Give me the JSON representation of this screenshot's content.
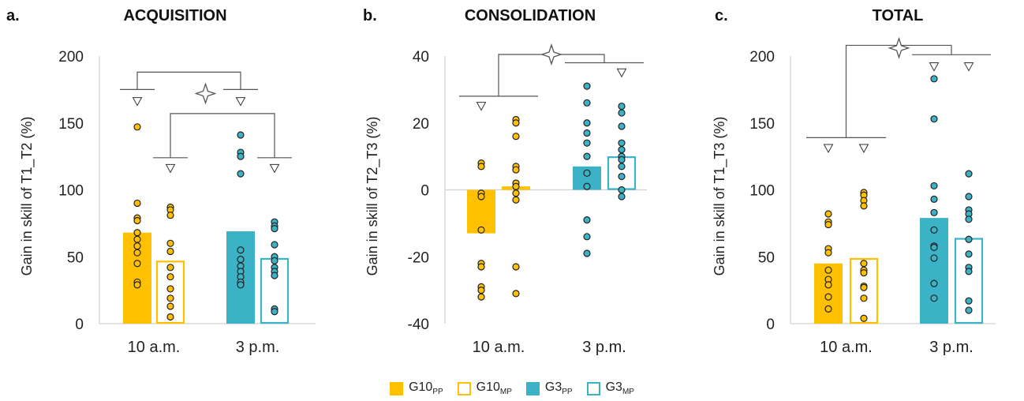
{
  "colors": {
    "g10": "#ffc000",
    "g3": "#3cb2c6",
    "star": "#555555",
    "axis": "#d0d0d0",
    "bracket": "#555555"
  },
  "legend": [
    {
      "base": "G10",
      "sub": "PP",
      "fill": "filled",
      "color": "#ffc000"
    },
    {
      "base": "G10",
      "sub": "MP",
      "fill": "hollow",
      "color": "#ffc000"
    },
    {
      "base": "G3",
      "sub": "PP",
      "fill": "filled",
      "color": "#3cb2c6"
    },
    {
      "base": "G3",
      "sub": "MP",
      "fill": "hollow",
      "color": "#3cb2c6"
    }
  ],
  "chart_data": [
    {
      "letter": "a.",
      "title": "ACQUISITION",
      "type": "bar",
      "ylabel": "Gain in skill of T1_T2 (%)",
      "ylim": [
        0,
        200
      ],
      "yticks": [
        0,
        50,
        100,
        150,
        200
      ],
      "categories": [
        "10 a.m.",
        "3 p.m."
      ],
      "series": [
        {
          "group": "G10",
          "cond": "PP",
          "category": "10 a.m.",
          "mean": 68,
          "points": [
            147,
            90,
            79,
            77,
            68,
            63,
            58,
            53,
            45,
            31,
            29
          ]
        },
        {
          "group": "G10",
          "cond": "MP",
          "category": "10 a.m.",
          "mean": 47,
          "points": [
            87,
            85,
            81,
            60,
            54,
            42,
            35,
            26,
            19,
            13,
            5
          ]
        },
        {
          "group": "G3",
          "cond": "PP",
          "category": "3 p.m.",
          "mean": 69,
          "points": [
            141,
            128,
            125,
            112,
            55,
            48,
            43,
            39,
            35,
            31,
            29
          ]
        },
        {
          "group": "G3",
          "cond": "MP",
          "category": "3 p.m.",
          "mean": 49,
          "points": [
            76,
            73,
            71,
            59,
            50,
            47,
            42,
            39,
            36,
            11,
            9
          ]
        }
      ],
      "markers": [
        {
          "series": 0,
          "y": 166
        },
        {
          "series": 1,
          "y": 116
        },
        {
          "series": 2,
          "y": 166
        },
        {
          "series": 3,
          "y": 116
        }
      ],
      "brackets": [
        {
          "from": 0,
          "to": 2,
          "level": 175,
          "top": 188,
          "dir": "up"
        },
        {
          "from": 1,
          "to": 3,
          "level": 124,
          "top": 157,
          "dir": "up"
        }
      ],
      "star": {
        "x_between": [
          1,
          2
        ],
        "y": 172
      }
    },
    {
      "letter": "b.",
      "title": "CONSOLIDATION",
      "type": "bar",
      "ylabel": "Gain in skill of T2_T3 (%)",
      "ylim": [
        -40,
        40
      ],
      "yticks": [
        -40,
        -20,
        0,
        20,
        40
      ],
      "categories": [
        "10 a.m.",
        "3 p.m."
      ],
      "series": [
        {
          "group": "G10",
          "cond": "PP",
          "category": "10 a.m.",
          "mean": -13,
          "points": [
            8,
            7,
            -1,
            -2,
            -12,
            -22,
            -23,
            -29,
            -30,
            -32
          ]
        },
        {
          "group": "G10",
          "cond": "MP",
          "category": "10 a.m.",
          "mean": 1,
          "points": [
            21,
            20,
            16,
            7,
            6,
            2,
            1,
            -1,
            -3,
            -23,
            -31
          ]
        },
        {
          "group": "G3",
          "cond": "PP",
          "category": "3 p.m.",
          "mean": 7,
          "points": [
            31,
            26,
            20,
            17,
            14,
            10,
            5,
            1,
            -9,
            -14,
            -19
          ]
        },
        {
          "group": "G3",
          "cond": "MP",
          "category": "3 p.m.",
          "mean": 10,
          "points": [
            25,
            23,
            19,
            14,
            12,
            10,
            9,
            7,
            4,
            0,
            -2
          ]
        }
      ],
      "markers": [
        {
          "series": 0,
          "y": 25
        },
        {
          "series": 3,
          "y": 35
        }
      ],
      "brackets": [
        {
          "from": 0,
          "to": 1,
          "level": 28,
          "top": 40,
          "dir": "up",
          "kind": "pair"
        },
        {
          "from": 2,
          "to": 3,
          "level": 38,
          "top": 40,
          "dir": "up",
          "kind": "pair"
        }
      ],
      "star": {
        "x_between": [
          1,
          2
        ],
        "y": 40
      }
    },
    {
      "letter": "c.",
      "title": "TOTAL",
      "type": "bar",
      "ylabel": "Gain in skill of T1_T3 (%)",
      "ylim": [
        0,
        200
      ],
      "yticks": [
        0,
        50,
        100,
        150,
        200
      ],
      "categories": [
        "10 a.m.",
        "3 p.m."
      ],
      "series": [
        {
          "group": "G10",
          "cond": "PP",
          "category": "10 a.m.",
          "mean": 45,
          "points": [
            82,
            76,
            74,
            56,
            53,
            40,
            33,
            29,
            20,
            11
          ]
        },
        {
          "group": "G10",
          "cond": "MP",
          "category": "10 a.m.",
          "mean": 49,
          "points": [
            98,
            96,
            92,
            88,
            45,
            40,
            38,
            28,
            27,
            19,
            4
          ]
        },
        {
          "group": "G3",
          "cond": "PP",
          "category": "3 p.m.",
          "mean": 79,
          "points": [
            183,
            153,
            103,
            93,
            83,
            70,
            58,
            57,
            49,
            30,
            19
          ]
        },
        {
          "group": "G3",
          "cond": "MP",
          "category": "3 p.m.",
          "mean": 64,
          "points": [
            112,
            95,
            85,
            82,
            78,
            63,
            52,
            42,
            39,
            17,
            10
          ]
        }
      ],
      "markers": [
        {
          "series": 0,
          "y": 131
        },
        {
          "series": 1,
          "y": 131
        },
        {
          "series": 2,
          "y": 192
        },
        {
          "series": 3,
          "y": 192
        }
      ],
      "brackets": [
        {
          "from": 0,
          "to": 1,
          "level": 139,
          "top": 208,
          "dir": "up",
          "kind": "pair"
        },
        {
          "from": 2,
          "to": 3,
          "level": 201,
          "top": 208,
          "dir": "up",
          "kind": "pair"
        }
      ],
      "star": {
        "x_between": [
          1,
          2
        ],
        "y": 206
      }
    }
  ]
}
